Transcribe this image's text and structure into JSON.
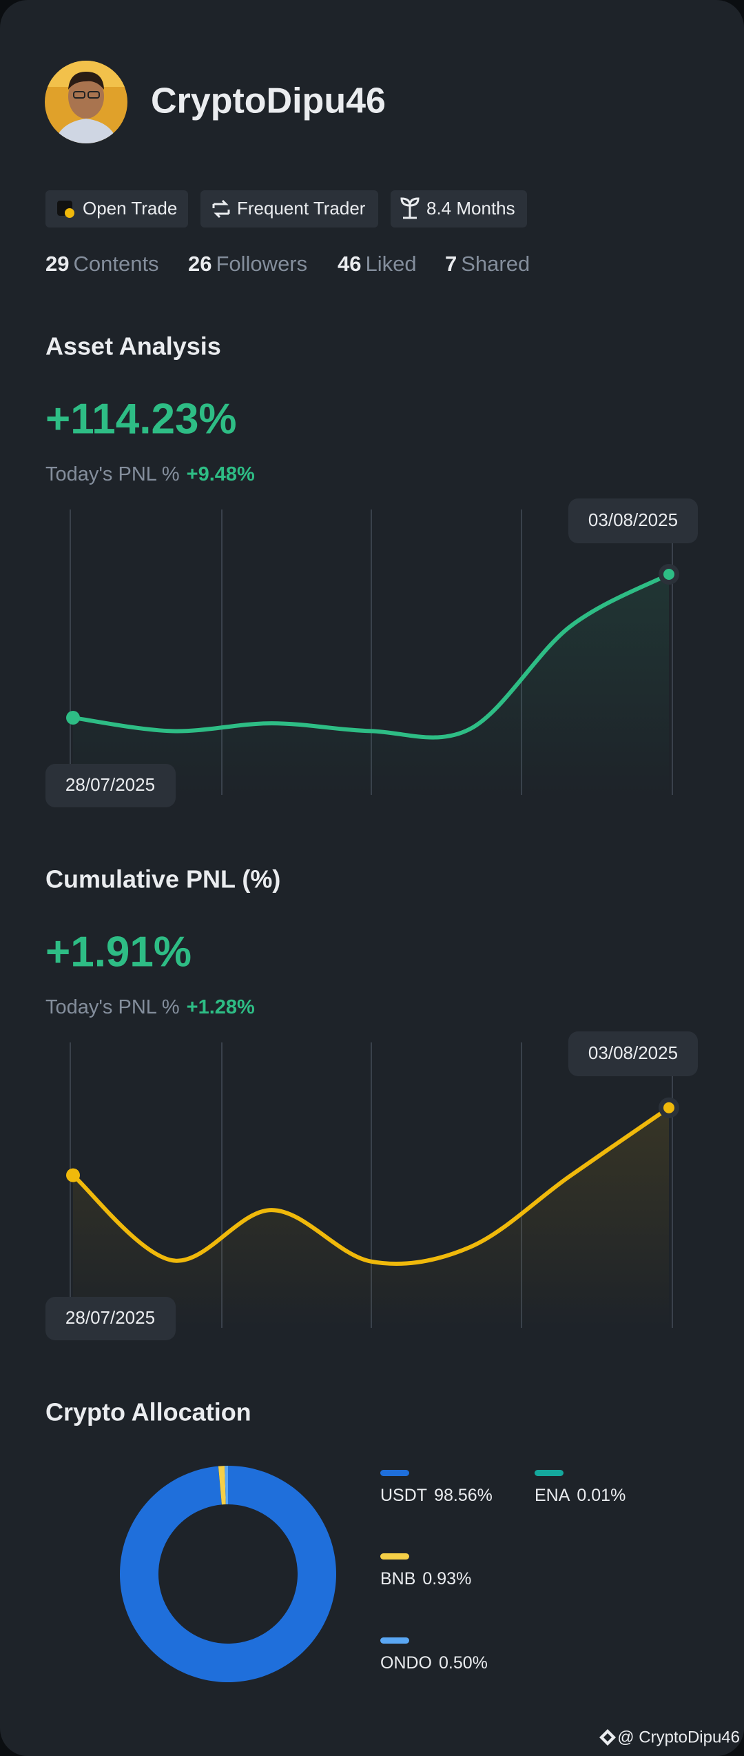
{
  "profile": {
    "name": "CryptoDipu46",
    "tags": [
      "Open Trade",
      "Frequent Trader",
      "8.4 Months"
    ],
    "stats": [
      {
        "value": 29,
        "label": "Contents"
      },
      {
        "value": 26,
        "label": "Followers"
      },
      {
        "value": 46,
        "label": "Liked"
      },
      {
        "value": 7,
        "label": "Shared"
      }
    ]
  },
  "chart_data": [
    {
      "type": "line",
      "title": "Asset Analysis",
      "headline": "+114.23%",
      "today_label": "Today's PNL %",
      "today_value": "+9.48%",
      "categories": [
        "28/07/2025",
        null,
        null,
        null,
        null,
        null,
        "03/08/2025"
      ],
      "values": [
        88.4,
        86.0,
        87.4,
        86.0,
        86.4,
        104.75,
        114.23
      ],
      "color": "#2ebd85",
      "ylim": [
        74.5,
        125.9
      ]
    },
    {
      "type": "line",
      "title": "Cumulative PNL (%)",
      "headline": "+1.91%",
      "today_label": "Today's PNL %",
      "today_value": "+1.28%",
      "categories": [
        "28/07/2025",
        null,
        null,
        null,
        null,
        null,
        "03/08/2025"
      ],
      "values": [
        0.65,
        -0.94,
        0.0,
        -0.96,
        -0.69,
        0.63,
        1.91
      ],
      "color": "#f0b90b",
      "ylim": [
        -2.2,
        3.13
      ]
    },
    {
      "type": "pie",
      "title": "Crypto Allocation",
      "categories": [
        "USDT",
        "ENA",
        "BNB",
        "ONDO"
      ],
      "values": [
        98.56,
        0.01,
        0.93,
        0.5
      ],
      "value_labels": [
        "98.56%",
        "0.01%",
        "0.93%",
        "0.50%"
      ],
      "colors": [
        "#1f6fdb",
        "#14a89d",
        "#f5cf47",
        "#5aa7f4"
      ]
    }
  ],
  "watermark": "@ CryptoDipu46"
}
